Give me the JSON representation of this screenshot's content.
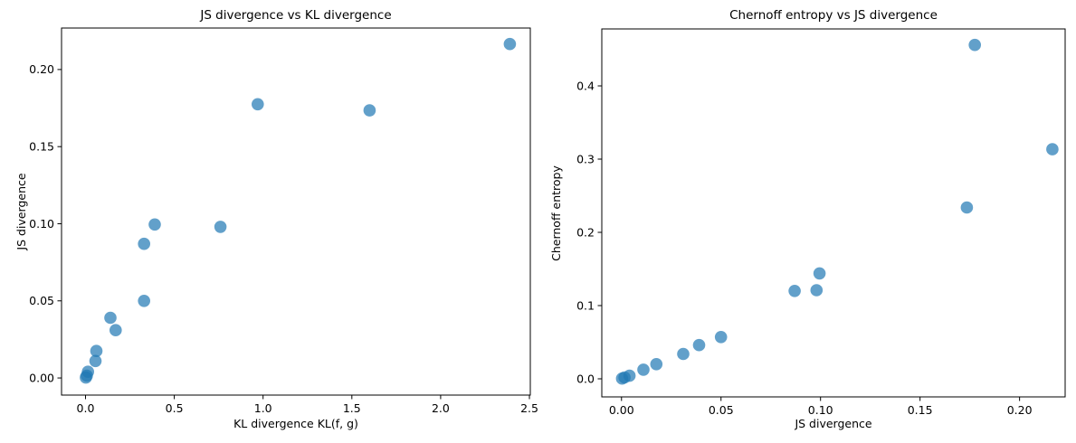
{
  "figure": {
    "background": "#ffffff",
    "marker_color": "#1f77b4",
    "marker_alpha": 0.7,
    "marker_radius": 6.8,
    "spine_color": "#000000",
    "text_color": "#000000"
  },
  "chart_data": [
    {
      "type": "scatter",
      "title": "JS divergence vs KL divergence",
      "xlabel": "KL divergence KL(f, g)",
      "ylabel": "JS divergence",
      "xlim": [
        -0.135,
        2.505
      ],
      "ylim": [
        -0.0111,
        0.2269
      ],
      "grid": false,
      "legend": false,
      "xticks": {
        "values": [
          0.0,
          0.5,
          1.0,
          1.5,
          2.0,
          2.5
        ],
        "labels": [
          "0.0",
          "0.5",
          "1.0",
          "1.5",
          "2.0",
          "2.5"
        ]
      },
      "yticks": {
        "values": [
          0.0,
          0.05,
          0.1,
          0.15,
          0.2
        ],
        "labels": [
          "0.00",
          "0.05",
          "0.10",
          "0.15",
          "0.20"
        ]
      },
      "x": [
        2.39,
        0.97,
        1.6,
        0.39,
        0.76,
        0.33,
        0.33,
        0.14,
        0.17,
        0.061,
        0.056,
        0.014,
        0.007,
        0.002
      ],
      "y": [
        0.2165,
        0.1775,
        0.1735,
        0.0995,
        0.098,
        0.087,
        0.05,
        0.039,
        0.031,
        0.0175,
        0.011,
        0.004,
        0.0015,
        0.0003
      ]
    },
    {
      "type": "scatter",
      "title": "Chernoff entropy vs JS divergence",
      "xlabel": "JS divergence",
      "ylabel": "Chernoff entropy",
      "xlim": [
        -0.0099,
        0.2229
      ],
      "ylim": [
        -0.0247,
        0.4778
      ],
      "grid": false,
      "legend": false,
      "xticks": {
        "values": [
          0.0,
          0.05,
          0.1,
          0.15,
          0.2
        ],
        "labels": [
          "0.00",
          "0.05",
          "0.10",
          "0.15",
          "0.20"
        ]
      },
      "yticks": {
        "values": [
          0.0,
          0.1,
          0.2,
          0.3,
          0.4
        ],
        "labels": [
          "0.0",
          "0.1",
          "0.2",
          "0.3",
          "0.4"
        ]
      },
      "x": [
        0.2165,
        0.1775,
        0.1735,
        0.0995,
        0.098,
        0.087,
        0.05,
        0.039,
        0.031,
        0.0175,
        0.011,
        0.004,
        0.0015,
        0.0003
      ],
      "y": [
        0.3135,
        0.456,
        0.234,
        0.144,
        0.121,
        0.12,
        0.057,
        0.046,
        0.034,
        0.02,
        0.0125,
        0.0042,
        0.0018,
        0.0004
      ]
    }
  ]
}
